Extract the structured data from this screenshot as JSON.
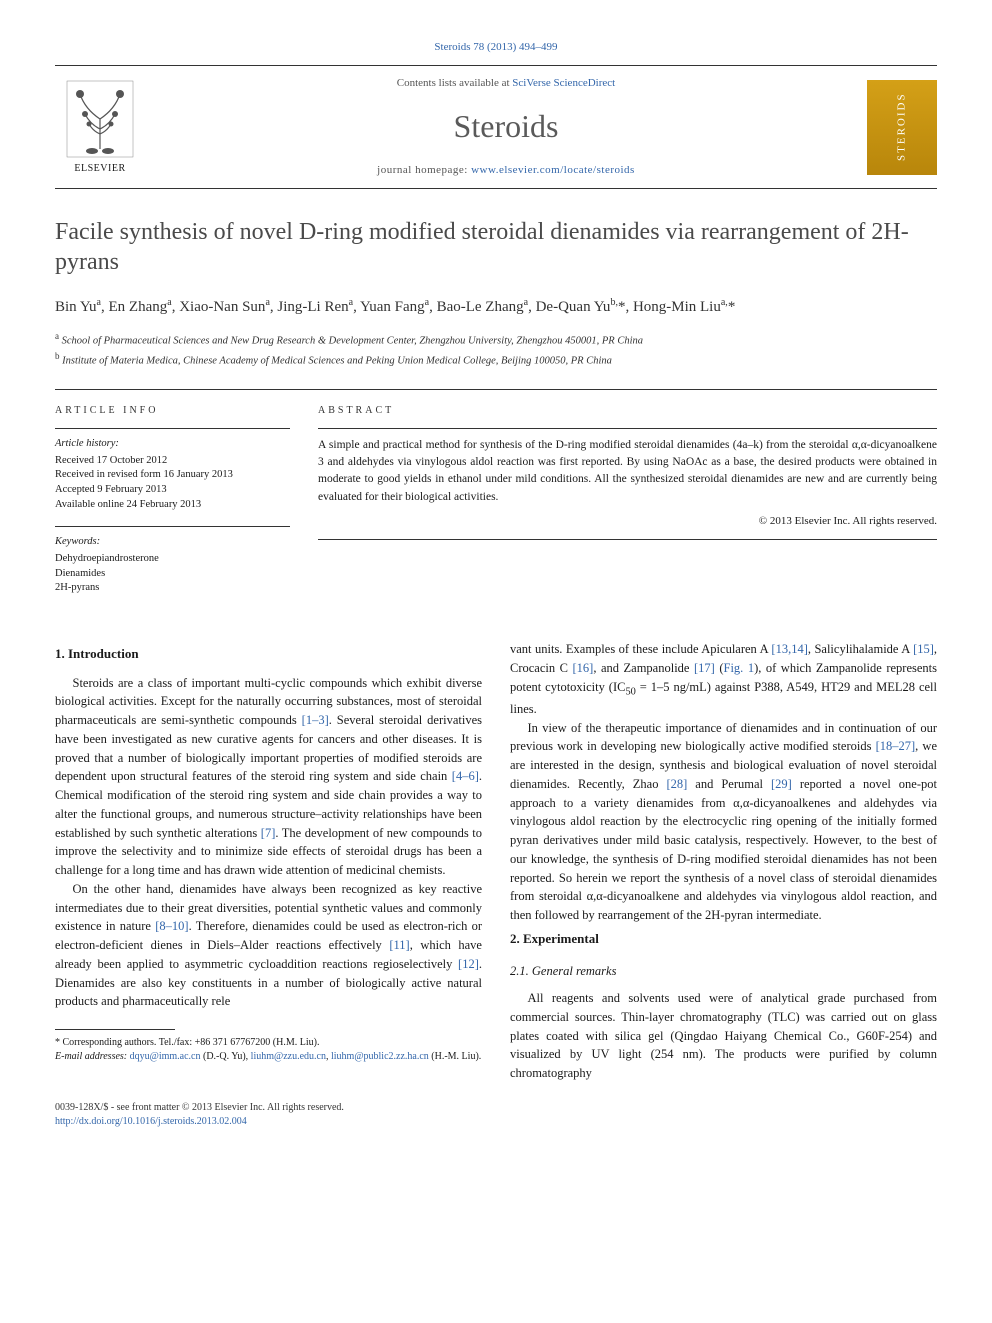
{
  "citation": "Steroids 78 (2013) 494–499",
  "header": {
    "contents_prefix": "Contents lists available at ",
    "contents_link": "SciVerse ScienceDirect",
    "journal": "Steroids",
    "homepage_prefix": "journal homepage: ",
    "homepage_url": "www.elsevier.com/locate/steroids",
    "publisher": "ELSEVIER",
    "cover_label": "STEROIDS"
  },
  "title": "Facile synthesis of novel D-ring modified steroidal dienamides via rearrangement of 2H-pyrans",
  "authors_html": "Bin Yu<sup>a</sup>, En Zhang<sup>a</sup>, Xiao-Nan Sun<sup>a</sup>, Jing-Li Ren<sup>a</sup>, Yuan Fang<sup>a</sup>, Bao-Le Zhang<sup>a</sup>, De-Quan Yu<sup>b,</sup><span class='sym'>*</span>, Hong-Min Liu<sup>a,</sup><span class='sym'>*</span>",
  "affiliations": [
    {
      "sup": "a",
      "text": "School of Pharmaceutical Sciences and New Drug Research & Development Center, Zhengzhou University, Zhengzhou 450001, PR China"
    },
    {
      "sup": "b",
      "text": "Institute of Materia Medica, Chinese Academy of Medical Sciences and Peking Union Medical College, Beijing 100050, PR China"
    }
  ],
  "info": {
    "label": "ARTICLE INFO",
    "history_label": "Article history:",
    "history": [
      "Received 17 October 2012",
      "Received in revised form 16 January 2013",
      "Accepted 9 February 2013",
      "Available online 24 February 2013"
    ],
    "keywords_label": "Keywords:",
    "keywords": [
      "Dehydroepiandrosterone",
      "Dienamides",
      "2H-pyrans"
    ]
  },
  "abstract": {
    "label": "ABSTRACT",
    "text": "A simple and practical method for synthesis of the D-ring modified steroidal dienamides (4a–k) from the steroidal α,α-dicyanoalkene 3 and aldehydes via vinylogous aldol reaction was first reported. By using NaOAc as a base, the desired products were obtained in moderate to good yields in ethanol under mild conditions. All the synthesized steroidal dienamides are new and are currently being evaluated for their biological activities.",
    "copyright": "© 2013 Elsevier Inc. All rights reserved."
  },
  "sections": {
    "intro_heading": "1. Introduction",
    "intro_p1": "Steroids are a class of important multi-cyclic compounds which exhibit diverse biological activities. Except for the naturally occurring substances, most of steroidal pharmaceuticals are semi-synthetic compounds [1–3]. Several steroidal derivatives have been investigated as new curative agents for cancers and other diseases. It is proved that a number of biologically important properties of modified steroids are dependent upon structural features of the steroid ring system and side chain [4–6]. Chemical modification of the steroid ring system and side chain provides a way to alter the functional groups, and numerous structure–activity relationships have been established by such synthetic alterations [7]. The development of new compounds to improve the selectivity and to minimize side effects of steroidal drugs has been a challenge for a long time and has drawn wide attention of medicinal chemists.",
    "intro_p2": "On the other hand, dienamides have always been recognized as key reactive intermediates due to their great diversities, potential synthetic values and commonly existence in nature [8–10]. Therefore, dienamides could be used as electron-rich or electron-deficient dienes in Diels–Alder reactions effectively [11], which have already been applied to asymmetric cycloaddition reactions regioselectively [12]. Dienamides are also key constituents in a number of biologically active natural products and pharmaceutically rele",
    "intro_p2b": "vant units. Examples of these include Apicularen A [13,14], Salicylihalamide A [15], Crocacin C [16], and Zampanolide [17] (Fig. 1), of which Zampanolide represents potent cytotoxicity (IC50 = 1–5 ng/mL) against P388, A549, HT29 and MEL28 cell lines.",
    "intro_p3": "In view of the therapeutic importance of dienamides and in continuation of our previous work in developing new biologically active modified steroids [18–27], we are interested in the design, synthesis and biological evaluation of novel steroidal dienamides. Recently, Zhao [28] and Perumal [29] reported a novel one-pot approach to a variety dienamides from α,α-dicyanoalkenes and aldehydes via vinylogous aldol reaction by the electrocyclic ring opening of the initially formed pyran derivatives under mild basic catalysis, respectively. However, to the best of our knowledge, the synthesis of D-ring modified steroidal dienamides has not been reported. So herein we report the synthesis of a novel class of steroidal dienamides from steroidal α,α-dicyanoalkene and aldehydes via vinylogous aldol reaction, and then followed by rearrangement of the 2H-pyran intermediate.",
    "exp_heading": "2. Experimental",
    "exp_sub": "2.1. General remarks",
    "exp_p1": "All reagents and solvents used were of analytical grade purchased from commercial sources. Thin-layer chromatography (TLC) was carried out on glass plates coated with silica gel (Qingdao Haiyang Chemical Co., G60F-254) and visualized by UV light (254 nm). The products were purified by column chromatography"
  },
  "footnotes": {
    "corr": "* Corresponding authors. Tel./fax: +86 371 67767200 (H.M. Liu).",
    "email_label": "E-mail addresses:",
    "email1": "dqyu@imm.ac.cn",
    "email1_who": "(D.-Q. Yu),",
    "email2": "liuhm@zzu.edu.cn",
    "email2_sep": ",",
    "email3": "liuhm@public2.zz.ha.cn",
    "email3_who": "(H.-M. Liu)."
  },
  "bottom": {
    "left1": "0039-128X/$ - see front matter © 2013 Elsevier Inc. All rights reserved.",
    "left2": "http://dx.doi.org/10.1016/j.steroids.2013.02.004"
  },
  "colors": {
    "link": "#3366aa",
    "title_grey": "#4a4a4a",
    "journal_grey": "#5a5a5a",
    "cover_grad_top": "#d4a017",
    "cover_grad_bottom": "#b8860b"
  }
}
